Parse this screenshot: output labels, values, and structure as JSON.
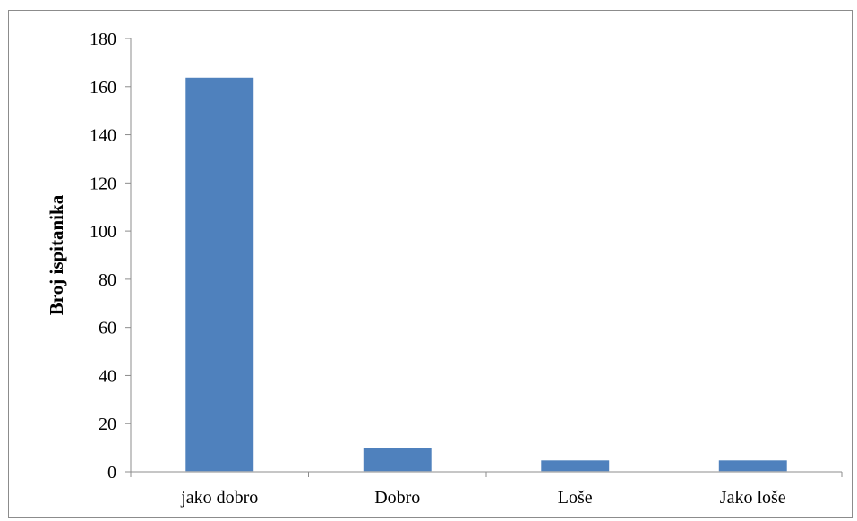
{
  "chart_data": {
    "type": "bar",
    "title": "",
    "xlabel": "",
    "ylabel": "Broj ispitanika",
    "ylim": [
      0,
      180
    ],
    "yticks": [
      0,
      20,
      40,
      60,
      80,
      100,
      120,
      140,
      160,
      180
    ],
    "categories": [
      "jako dobro",
      "Dobro",
      "Loše",
      "Jako loše"
    ],
    "values": [
      164,
      10,
      5,
      5
    ],
    "grid": false,
    "legend": "none",
    "bar_color": "#4f81bd"
  }
}
